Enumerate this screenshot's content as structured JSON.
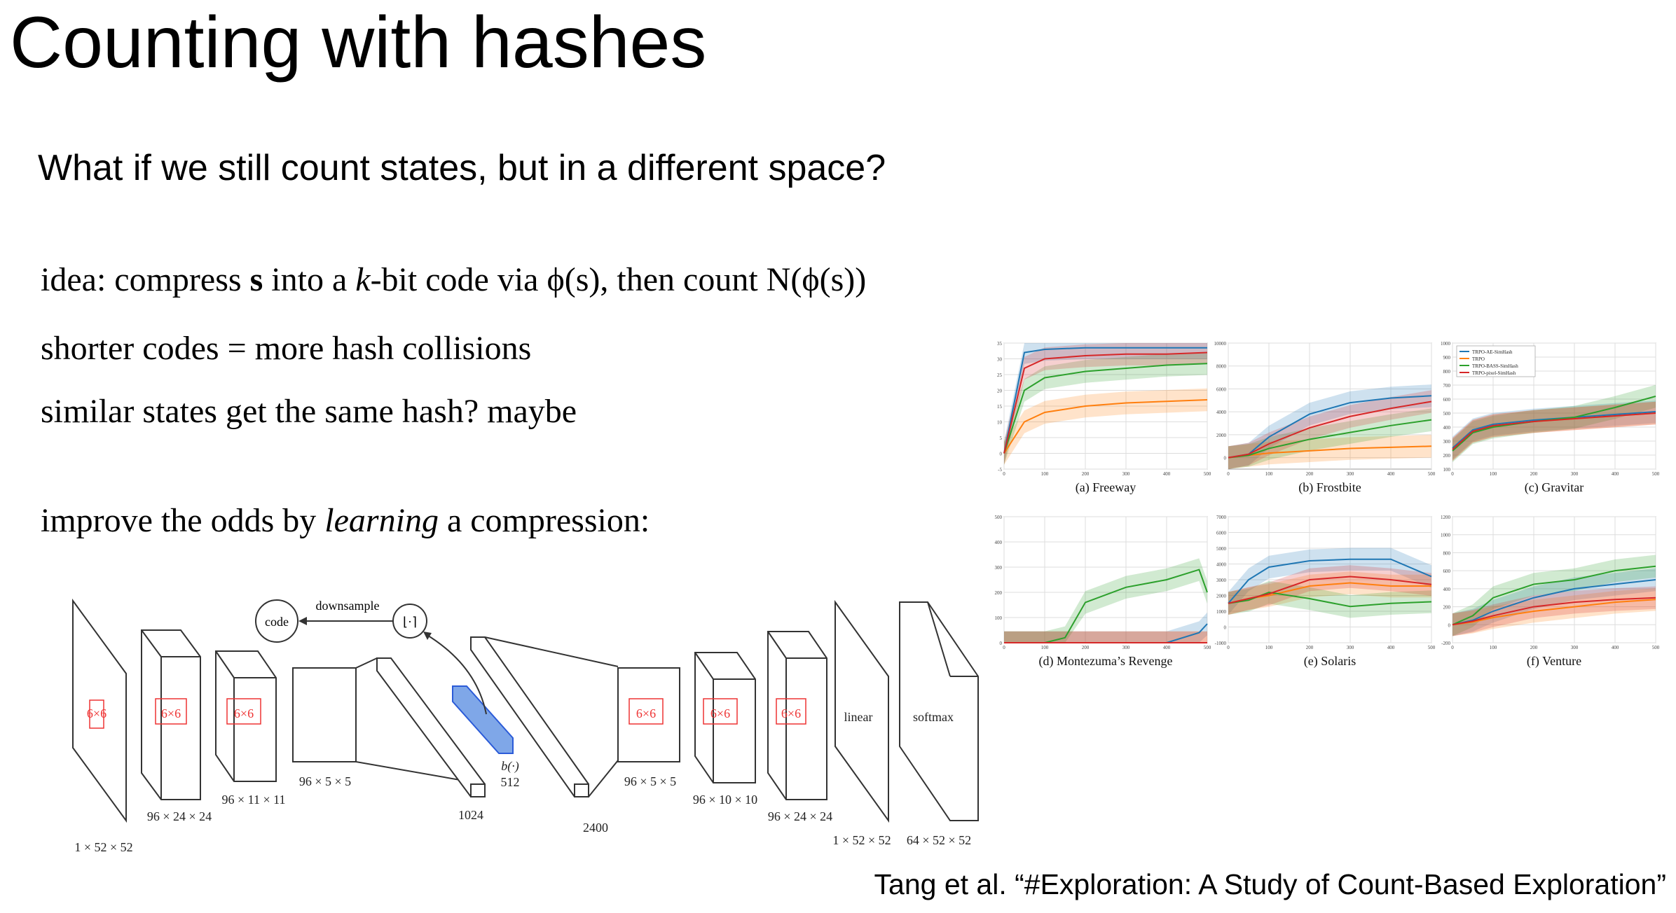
{
  "slide": {
    "title": "Counting with hashes",
    "subtitle": "What if we still count states, but in a different space?",
    "lines": {
      "l1_pre": "idea: compress ",
      "l1_s": "s",
      "l1_mid": " into a ",
      "l1_k": "k",
      "l1_post": "-bit code via ϕ(s), then count N(ϕ(s))",
      "l2": "shorter codes = more hash collisions",
      "l3": "similar states get the same hash? maybe",
      "l4_pre": "improve the odds by ",
      "l4_em": "learning",
      "l4_post": " a compression:"
    },
    "citation": "Tang et al. “#Exploration: A Study of Count-Based Exploration”"
  },
  "architecture": {
    "code_label": "code",
    "downsample_label": "downsample",
    "round_label": "⌊·⌉",
    "kernel_label": "6×6",
    "b_label": "b(·)",
    "b_size": "512",
    "linear_label": "linear",
    "softmax_label": "softmax",
    "dims": [
      "1 × 52 × 52",
      "96 × 24 × 24",
      "96 × 11 × 11",
      "96 × 5 × 5",
      "1024",
      "2400",
      "96 × 5 × 5",
      "96 × 10 × 10",
      "96 × 24 × 24",
      "1 × 52 × 52",
      "64 × 52 × 52"
    ]
  },
  "colors": {
    "TRPO-AE-SimHash": "#1f77b4",
    "TRPO": "#ff7f0e",
    "TRPO-BASS-SimHash": "#2ca02c",
    "TRPO-pixel-SimHash": "#d62728"
  },
  "chart_data": [
    {
      "type": "line",
      "title": "(a) Freeway",
      "x": [
        0,
        50,
        100,
        200,
        300,
        400,
        500
      ],
      "xlim": [
        0,
        500
      ],
      "ylim": [
        -5,
        35
      ],
      "yticks": [
        "-5",
        "0",
        "5",
        "10",
        "15",
        "20",
        "25",
        "30",
        "35"
      ],
      "xticks": [
        "0",
        "100",
        "200",
        "300",
        "400",
        "500"
      ],
      "series": [
        {
          "name": "TRPO-AE-SimHash",
          "values": [
            0,
            32,
            33,
            33.5,
            33.5,
            33.5,
            33.5
          ]
        },
        {
          "name": "TRPO",
          "values": [
            0,
            10,
            13,
            15,
            16,
            16.5,
            17
          ]
        },
        {
          "name": "TRPO-BASS-SimHash",
          "values": [
            0,
            20,
            24,
            26,
            27,
            28,
            28.5
          ]
        },
        {
          "name": "TRPO-pixel-SimHash",
          "values": [
            0,
            27,
            30,
            31,
            31.5,
            31.5,
            32
          ]
        }
      ]
    },
    {
      "type": "line",
      "title": "(b) Frostbite",
      "x": [
        0,
        50,
        100,
        200,
        300,
        400,
        500
      ],
      "xlim": [
        0,
        500
      ],
      "ylim": [
        -1000,
        10000
      ],
      "yticks": [
        "0",
        "2000",
        "4000",
        "6000",
        "8000",
        "10000"
      ],
      "xticks": [
        "0",
        "100",
        "200",
        "300",
        "400",
        "500"
      ],
      "series": [
        {
          "name": "TRPO-AE-SimHash",
          "values": [
            0,
            300,
            1800,
            3800,
            4800,
            5200,
            5400
          ]
        },
        {
          "name": "TRPO",
          "values": [
            0,
            200,
            400,
            600,
            800,
            900,
            1000
          ]
        },
        {
          "name": "TRPO-BASS-SimHash",
          "values": [
            0,
            200,
            800,
            1600,
            2200,
            2800,
            3300
          ]
        },
        {
          "name": "TRPO-pixel-SimHash",
          "values": [
            0,
            300,
            1200,
            2600,
            3600,
            4300,
            4900
          ]
        }
      ]
    },
    {
      "type": "line",
      "title": "(c) Gravitar",
      "x": [
        0,
        50,
        100,
        200,
        300,
        400,
        500
      ],
      "xlim": [
        0,
        500
      ],
      "ylim": [
        100,
        1000
      ],
      "yticks": [
        "100",
        "200",
        "300",
        "400",
        "500",
        "600",
        "700",
        "800",
        "900",
        "1000"
      ],
      "xticks": [
        "0",
        "100",
        "200",
        "300",
        "400",
        "500"
      ],
      "legend": [
        "TRPO-AE-SimHash",
        "TRPO",
        "TRPO-BASS-SimHash",
        "TRPO-pixel-SimHash"
      ],
      "series": [
        {
          "name": "TRPO-AE-SimHash",
          "values": [
            250,
            380,
            420,
            450,
            470,
            490,
            510
          ]
        },
        {
          "name": "TRPO",
          "values": [
            240,
            370,
            410,
            440,
            460,
            480,
            500
          ]
        },
        {
          "name": "TRPO-BASS-SimHash",
          "values": [
            230,
            360,
            400,
            440,
            470,
            540,
            620
          ]
        },
        {
          "name": "TRPO-pixel-SimHash",
          "values": [
            240,
            370,
            410,
            440,
            460,
            480,
            500
          ]
        }
      ]
    },
    {
      "type": "line",
      "title": "(d) Montezuma’s Revenge",
      "x": [
        0,
        100,
        150,
        200,
        300,
        400,
        480,
        500
      ],
      "xlim": [
        0,
        500
      ],
      "ylim": [
        0,
        500
      ],
      "yticks": [
        "0",
        "100",
        "200",
        "300",
        "400",
        "500"
      ],
      "xticks": [
        "0",
        "100",
        "200",
        "300",
        "400",
        "500"
      ],
      "series": [
        {
          "name": "TRPO-AE-SimHash",
          "values": [
            0,
            0,
            0,
            0,
            0,
            0,
            40,
            75
          ]
        },
        {
          "name": "TRPO",
          "values": [
            0,
            0,
            0,
            0,
            0,
            0,
            0,
            0
          ]
        },
        {
          "name": "TRPO-BASS-SimHash",
          "values": [
            0,
            0,
            20,
            160,
            220,
            250,
            290,
            200
          ]
        },
        {
          "name": "TRPO-pixel-SimHash",
          "values": [
            0,
            0,
            0,
            0,
            0,
            0,
            0,
            0
          ]
        }
      ]
    },
    {
      "type": "line",
      "title": "(e) Solaris",
      "x": [
        0,
        50,
        100,
        200,
        300,
        400,
        500
      ],
      "xlim": [
        0,
        500
      ],
      "ylim": [
        -1000,
        7000
      ],
      "yticks": [
        "-1000",
        "0",
        "1000",
        "2000",
        "3000",
        "4000",
        "5000",
        "6000",
        "7000"
      ],
      "xticks": [
        "0",
        "100",
        "200",
        "300",
        "400",
        "500"
      ],
      "series": [
        {
          "name": "TRPO-AE-SimHash",
          "values": [
            1500,
            3000,
            3800,
            4200,
            4300,
            4300,
            3200
          ]
        },
        {
          "name": "TRPO",
          "values": [
            1500,
            1800,
            2000,
            2600,
            2800,
            2600,
            2600
          ]
        },
        {
          "name": "TRPO-BASS-SimHash",
          "values": [
            1500,
            1700,
            2200,
            1800,
            1300,
            1500,
            1600
          ]
        },
        {
          "name": "TRPO-pixel-SimHash",
          "values": [
            1500,
            1800,
            2100,
            3000,
            3200,
            3000,
            2700
          ]
        }
      ]
    },
    {
      "type": "line",
      "title": "(f) Venture",
      "x": [
        0,
        50,
        100,
        200,
        300,
        400,
        500
      ],
      "xlim": [
        0,
        500
      ],
      "ylim": [
        -200,
        1200
      ],
      "yticks": [
        "-200",
        "0",
        "200",
        "400",
        "600",
        "800",
        "1000",
        "1200"
      ],
      "xticks": [
        "0",
        "100",
        "200",
        "300",
        "400",
        "500"
      ],
      "series": [
        {
          "name": "TRPO-AE-SimHash",
          "values": [
            0,
            50,
            150,
            300,
            400,
            450,
            500
          ]
        },
        {
          "name": "TRPO",
          "values": [
            0,
            30,
            80,
            150,
            200,
            250,
            280
          ]
        },
        {
          "name": "TRPO-BASS-SimHash",
          "values": [
            0,
            100,
            300,
            450,
            500,
            600,
            650
          ]
        },
        {
          "name": "TRPO-pixel-SimHash",
          "values": [
            0,
            40,
            100,
            200,
            250,
            280,
            300
          ]
        }
      ]
    }
  ]
}
